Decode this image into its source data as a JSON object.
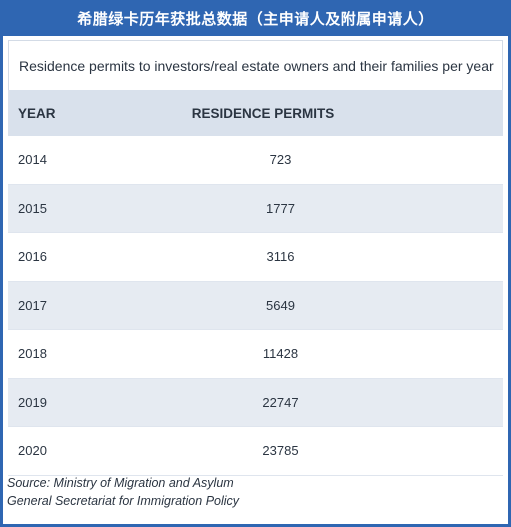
{
  "banner": {
    "title": "希腊绿卡历年获批总数据（主申请人及附属申请人）"
  },
  "colors": {
    "banner_bg": "#2f66b2",
    "header_bg": "#d9e1ec",
    "stripe_bg": "#e6ebf2"
  },
  "chart_data": {
    "type": "table",
    "title": "Residence permits to investors/real estate owners and their families per year",
    "columns": [
      "YEAR",
      "RESIDENCE PERMITS"
    ],
    "rows": [
      {
        "year": "2014",
        "value": "723"
      },
      {
        "year": "2015",
        "value": "1777"
      },
      {
        "year": "2016",
        "value": "3116"
      },
      {
        "year": "2017",
        "value": "5649"
      },
      {
        "year": "2018",
        "value": "11428"
      },
      {
        "year": "2019",
        "value": "22747"
      },
      {
        "year": "2020",
        "value": "23785"
      }
    ],
    "source": [
      "Source: Ministry of Migration and Asylum",
      "General Secretariat for Immigration Policy"
    ]
  }
}
